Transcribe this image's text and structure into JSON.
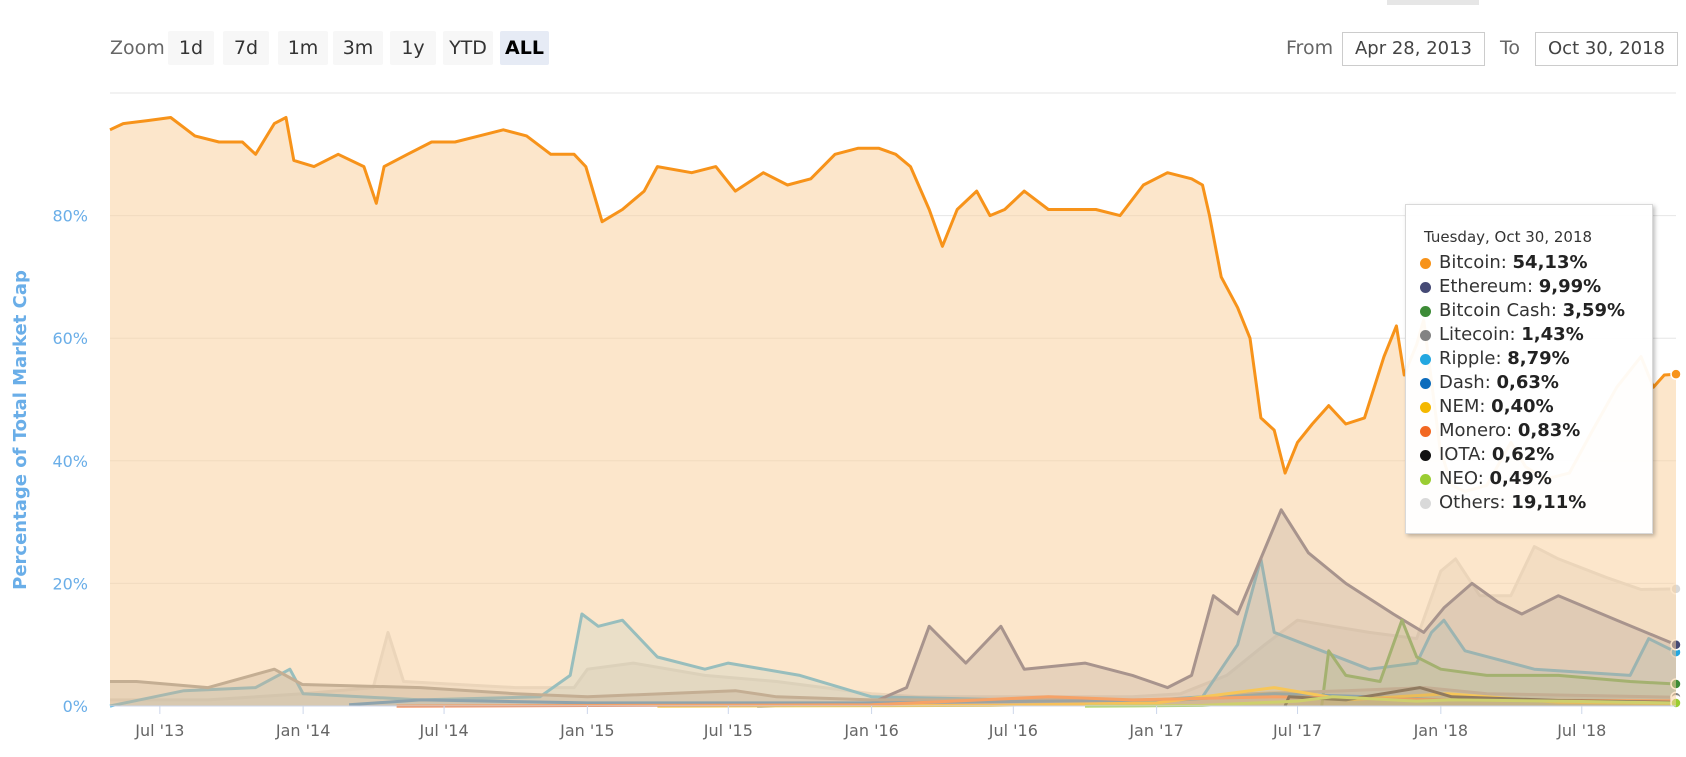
{
  "toolbar": {
    "zoom_label": "Zoom",
    "zoom_buttons": [
      "1d",
      "7d",
      "1m",
      "3m",
      "1y",
      "YTD",
      "ALL"
    ],
    "active_zoom": "ALL",
    "from_label": "From",
    "from_value": "Apr 28, 2013",
    "to_label": "To",
    "to_value": "Oct 30, 2018"
  },
  "tooltip": {
    "date": "Tuesday, Oct 30, 2018",
    "rows": [
      {
        "name": "Bitcoin",
        "value": "54,13%",
        "color": "#f7931a"
      },
      {
        "name": "Ethereum",
        "value": "9,99%",
        "color": "#454a75"
      },
      {
        "name": "Bitcoin Cash",
        "value": "3,59%",
        "color": "#3d8b37"
      },
      {
        "name": "Litecoin",
        "value": "1,43%",
        "color": "#838383"
      },
      {
        "name": "Ripple",
        "value": "8,79%",
        "color": "#23a7e0"
      },
      {
        "name": "Dash",
        "value": "0,63%",
        "color": "#0d6cbc"
      },
      {
        "name": "NEM",
        "value": "0,40%",
        "color": "#f4b800"
      },
      {
        "name": "Monero",
        "value": "0,83%",
        "color": "#f26822"
      },
      {
        "name": "IOTA",
        "value": "0,62%",
        "color": "#111111"
      },
      {
        "name": "NEO",
        "value": "0,49%",
        "color": "#9acd32"
      },
      {
        "name": "Others",
        "value": "19,11%",
        "color": "#d9d9d9"
      }
    ]
  },
  "chart_data": {
    "type": "area",
    "ylabel": "Percentage of Total Market Cap",
    "ylim": [
      0,
      100
    ],
    "xlim": [
      "2013-04-28",
      "2018-10-30"
    ],
    "y_ticks": [
      0,
      20,
      40,
      60,
      80
    ],
    "y_tick_labels": [
      "0%",
      "20%",
      "40%",
      "60%",
      "80%"
    ],
    "x_tick_labels": [
      "Jul '13",
      "Jan '14",
      "Jul '14",
      "Jan '15",
      "Jul '15",
      "Jan '16",
      "Jul '16",
      "Jan '17",
      "Jul '17",
      "Jan '18",
      "Jul '18"
    ],
    "x_tick_dates": [
      "2013-07-01",
      "2014-01-01",
      "2014-07-01",
      "2015-01-01",
      "2015-07-01",
      "2016-01-01",
      "2016-07-01",
      "2017-01-01",
      "2017-07-01",
      "2018-01-01",
      "2018-07-01"
    ],
    "grid": true,
    "series": [
      {
        "name": "Others",
        "color": "#d9d9d9",
        "fill": "rgba(200,200,200,0.35)",
        "points": [
          [
            "2013-04-28",
            1
          ],
          [
            "2013-09-01",
            1
          ],
          [
            "2014-01-01",
            2
          ],
          [
            "2014-04-01",
            3
          ],
          [
            "2014-04-20",
            12
          ],
          [
            "2014-05-10",
            4
          ],
          [
            "2014-10-01",
            3
          ],
          [
            "2014-12-15",
            3
          ],
          [
            "2015-01-01",
            6
          ],
          [
            "2015-03-01",
            7
          ],
          [
            "2015-06-01",
            5
          ],
          [
            "2015-09-01",
            4
          ],
          [
            "2016-01-01",
            2
          ],
          [
            "2016-03-01",
            1.5
          ],
          [
            "2016-07-01",
            1.5
          ],
          [
            "2016-12-01",
            1.5
          ],
          [
            "2017-02-01",
            2
          ],
          [
            "2017-04-01",
            5
          ],
          [
            "2017-05-20",
            10
          ],
          [
            "2017-07-01",
            14
          ],
          [
            "2017-08-15",
            13
          ],
          [
            "2017-10-01",
            12
          ],
          [
            "2017-12-01",
            11
          ],
          [
            "2018-01-01",
            22
          ],
          [
            "2018-01-20",
            24
          ],
          [
            "2018-02-20",
            18
          ],
          [
            "2018-04-01",
            18
          ],
          [
            "2018-05-01",
            26
          ],
          [
            "2018-06-01",
            24
          ],
          [
            "2018-08-01",
            21
          ],
          [
            "2018-09-15",
            19
          ],
          [
            "2018-10-30",
            19.11
          ]
        ]
      },
      {
        "name": "Ripple",
        "color": "#23a7e0",
        "fill": "rgba(35,167,224,0.18)",
        "points": [
          [
            "2013-04-28",
            0
          ],
          [
            "2013-08-01",
            2.5
          ],
          [
            "2013-11-01",
            3
          ],
          [
            "2013-12-15",
            6
          ],
          [
            "2014-01-01",
            2
          ],
          [
            "2014-06-01",
            1
          ],
          [
            "2014-11-01",
            1.5
          ],
          [
            "2014-12-10",
            5
          ],
          [
            "2014-12-25",
            15
          ],
          [
            "2015-01-15",
            13
          ],
          [
            "2015-02-15",
            14
          ],
          [
            "2015-04-01",
            8
          ],
          [
            "2015-06-01",
            6
          ],
          [
            "2015-07-01",
            7
          ],
          [
            "2015-10-01",
            5
          ],
          [
            "2016-01-01",
            1.5
          ],
          [
            "2016-07-01",
            1
          ],
          [
            "2017-01-01",
            1
          ],
          [
            "2017-03-01",
            1.5
          ],
          [
            "2017-04-15",
            10
          ],
          [
            "2017-05-15",
            24
          ],
          [
            "2017-06-01",
            12
          ],
          [
            "2017-08-01",
            9
          ],
          [
            "2017-10-01",
            6
          ],
          [
            "2017-12-01",
            7
          ],
          [
            "2017-12-20",
            12
          ],
          [
            "2018-01-05",
            14
          ],
          [
            "2018-02-01",
            9
          ],
          [
            "2018-05-01",
            6
          ],
          [
            "2018-09-01",
            5
          ],
          [
            "2018-09-25",
            11
          ],
          [
            "2018-10-30",
            8.79
          ]
        ]
      },
      {
        "name": "Ethereum",
        "color": "#454a75",
        "fill": "rgba(69,74,117,0.25)",
        "points": [
          [
            "2015-08-07",
            0
          ],
          [
            "2016-01-01",
            0.5
          ],
          [
            "2016-02-15",
            3
          ],
          [
            "2016-03-15",
            13
          ],
          [
            "2016-05-01",
            7
          ],
          [
            "2016-06-15",
            13
          ],
          [
            "2016-07-15",
            6
          ],
          [
            "2016-10-01",
            7
          ],
          [
            "2016-12-01",
            5
          ],
          [
            "2017-01-15",
            3
          ],
          [
            "2017-02-15",
            5
          ],
          [
            "2017-03-15",
            18
          ],
          [
            "2017-04-15",
            15
          ],
          [
            "2017-06-10",
            32
          ],
          [
            "2017-07-15",
            25
          ],
          [
            "2017-09-01",
            20
          ],
          [
            "2017-11-01",
            15
          ],
          [
            "2017-12-10",
            12
          ],
          [
            "2018-01-05",
            16
          ],
          [
            "2018-02-10",
            20
          ],
          [
            "2018-03-15",
            17
          ],
          [
            "2018-04-15",
            15
          ],
          [
            "2018-06-01",
            18
          ],
          [
            "2018-08-15",
            14
          ],
          [
            "2018-10-30",
            9.99
          ]
        ]
      },
      {
        "name": "Bitcoin Cash",
        "color": "#3d8b37",
        "fill": "rgba(61,139,55,0.18)",
        "points": [
          [
            "2017-08-01",
            0
          ],
          [
            "2017-08-10",
            9
          ],
          [
            "2017-09-01",
            5
          ],
          [
            "2017-10-15",
            4
          ],
          [
            "2017-11-12",
            14
          ],
          [
            "2017-12-01",
            8
          ],
          [
            "2018-01-01",
            6
          ],
          [
            "2018-03-01",
            5
          ],
          [
            "2018-06-01",
            5
          ],
          [
            "2018-09-01",
            4
          ],
          [
            "2018-10-30",
            3.59
          ]
        ]
      },
      {
        "name": "Litecoin",
        "color": "#838383",
        "fill": "rgba(131,131,131,0.35)",
        "points": [
          [
            "2013-04-28",
            4
          ],
          [
            "2013-06-01",
            4
          ],
          [
            "2013-09-01",
            3
          ],
          [
            "2013-11-25",
            6
          ],
          [
            "2013-12-31",
            3.5
          ],
          [
            "2014-06-01",
            3
          ],
          [
            "2014-10-01",
            2
          ],
          [
            "2015-01-01",
            1.5
          ],
          [
            "2015-07-10",
            2.5
          ],
          [
            "2015-09-01",
            1.5
          ],
          [
            "2016-01-01",
            1
          ],
          [
            "2016-07-01",
            1
          ],
          [
            "2017-01-01",
            0.8
          ],
          [
            "2017-05-01",
            2
          ],
          [
            "2017-09-01",
            2.5
          ],
          [
            "2017-12-12",
            3
          ],
          [
            "2018-03-01",
            2
          ],
          [
            "2018-10-30",
            1.43
          ]
        ]
      },
      {
        "name": "Dash",
        "color": "#0d6cbc",
        "fill": "rgba(13,108,188,0.15)",
        "points": [
          [
            "2014-03-01",
            0.2
          ],
          [
            "2014-06-01",
            1
          ],
          [
            "2015-01-01",
            0.5
          ],
          [
            "2016-01-01",
            0.5
          ],
          [
            "2017-02-01",
            1
          ],
          [
            "2017-06-01",
            2
          ],
          [
            "2017-10-01",
            1.5
          ],
          [
            "2018-01-01",
            1
          ],
          [
            "2018-10-30",
            0.63
          ]
        ]
      },
      {
        "name": "NEM",
        "color": "#f4b800",
        "fill": "rgba(244,184,0,0.15)",
        "points": [
          [
            "2015-04-01",
            0
          ],
          [
            "2016-06-01",
            0.1
          ],
          [
            "2017-01-01",
            0.5
          ],
          [
            "2017-06-01",
            3
          ],
          [
            "2017-09-01",
            1
          ],
          [
            "2018-01-10",
            2
          ],
          [
            "2018-06-01",
            0.6
          ],
          [
            "2018-10-30",
            0.4
          ]
        ]
      },
      {
        "name": "Monero",
        "color": "#f26822",
        "fill": "rgba(242,104,34,0.15)",
        "points": [
          [
            "2014-05-01",
            0
          ],
          [
            "2016-01-01",
            0.2
          ],
          [
            "2016-08-15",
            1.5
          ],
          [
            "2016-12-01",
            1
          ],
          [
            "2017-06-01",
            1.5
          ],
          [
            "2018-01-01",
            1
          ],
          [
            "2018-10-30",
            0.83
          ]
        ]
      },
      {
        "name": "IOTA",
        "color": "#111111",
        "fill": "rgba(17,17,17,0.12)",
        "points": [
          [
            "2017-06-15",
            0
          ],
          [
            "2017-06-20",
            1.5
          ],
          [
            "2017-09-01",
            1
          ],
          [
            "2017-12-05",
            3
          ],
          [
            "2018-01-15",
            1.5
          ],
          [
            "2018-06-01",
            0.9
          ],
          [
            "2018-10-30",
            0.62
          ]
        ]
      },
      {
        "name": "NEO",
        "color": "#9acd32",
        "fill": "rgba(154,205,50,0.15)",
        "points": [
          [
            "2016-10-01",
            0
          ],
          [
            "2017-03-01",
            0.1
          ],
          [
            "2017-07-01",
            0.8
          ],
          [
            "2017-08-15",
            1.5
          ],
          [
            "2017-12-01",
            0.8
          ],
          [
            "2018-01-15",
            1
          ],
          [
            "2018-06-01",
            0.8
          ],
          [
            "2018-10-30",
            0.49
          ]
        ]
      },
      {
        "name": "Bitcoin",
        "color": "#f7931a",
        "fill": "rgba(250,210,160,0.55)",
        "points": [
          [
            "2013-04-28",
            94
          ],
          [
            "2013-05-15",
            95
          ],
          [
            "2013-06-15",
            95.5
          ],
          [
            "2013-07-15",
            96
          ],
          [
            "2013-08-15",
            93
          ],
          [
            "2013-09-15",
            92
          ],
          [
            "2013-10-15",
            92
          ],
          [
            "2013-11-01",
            90
          ],
          [
            "2013-11-25",
            95
          ],
          [
            "2013-12-10",
            96
          ],
          [
            "2013-12-20",
            89
          ],
          [
            "2014-01-15",
            88
          ],
          [
            "2014-02-15",
            90
          ],
          [
            "2014-03-20",
            88
          ],
          [
            "2014-04-05",
            82
          ],
          [
            "2014-04-15",
            88
          ],
          [
            "2014-05-15",
            90
          ],
          [
            "2014-06-15",
            92
          ],
          [
            "2014-07-15",
            92
          ],
          [
            "2014-08-15",
            93
          ],
          [
            "2014-09-15",
            94
          ],
          [
            "2014-10-15",
            93
          ],
          [
            "2014-11-15",
            90
          ],
          [
            "2014-12-15",
            90
          ],
          [
            "2014-12-30",
            88
          ],
          [
            "2015-01-20",
            79
          ],
          [
            "2015-02-15",
            81
          ],
          [
            "2015-03-15",
            84
          ],
          [
            "2015-04-01",
            88
          ],
          [
            "2015-05-15",
            87
          ],
          [
            "2015-06-15",
            88
          ],
          [
            "2015-07-10",
            84
          ],
          [
            "2015-08-15",
            87
          ],
          [
            "2015-09-15",
            85
          ],
          [
            "2015-10-15",
            86
          ],
          [
            "2015-11-15",
            90
          ],
          [
            "2015-12-15",
            91
          ],
          [
            "2016-01-10",
            91
          ],
          [
            "2016-02-01",
            90
          ],
          [
            "2016-02-20",
            88
          ],
          [
            "2016-03-15",
            81
          ],
          [
            "2016-04-01",
            75
          ],
          [
            "2016-04-20",
            81
          ],
          [
            "2016-05-15",
            84
          ],
          [
            "2016-06-01",
            80
          ],
          [
            "2016-06-20",
            81
          ],
          [
            "2016-07-15",
            84
          ],
          [
            "2016-08-15",
            81
          ],
          [
            "2016-09-15",
            81
          ],
          [
            "2016-10-15",
            81
          ],
          [
            "2016-11-15",
            80
          ],
          [
            "2016-12-15",
            85
          ],
          [
            "2017-01-15",
            87
          ],
          [
            "2017-02-15",
            86
          ],
          [
            "2017-03-01",
            85
          ],
          [
            "2017-03-10",
            80
          ],
          [
            "2017-03-25",
            70
          ],
          [
            "2017-04-15",
            65
          ],
          [
            "2017-05-01",
            60
          ],
          [
            "2017-05-15",
            47
          ],
          [
            "2017-06-01",
            45
          ],
          [
            "2017-06-15",
            38
          ],
          [
            "2017-07-01",
            43
          ],
          [
            "2017-07-20",
            46
          ],
          [
            "2017-08-10",
            49
          ],
          [
            "2017-09-01",
            46
          ],
          [
            "2017-09-25",
            47
          ],
          [
            "2017-10-20",
            57
          ],
          [
            "2017-11-05",
            62
          ],
          [
            "2017-11-15",
            54
          ],
          [
            "2017-12-01",
            59
          ],
          [
            "2017-12-10",
            63
          ],
          [
            "2017-12-31",
            42
          ],
          [
            "2018-01-15",
            36
          ],
          [
            "2018-02-01",
            35
          ],
          [
            "2018-03-01",
            36
          ],
          [
            "2018-04-01",
            43
          ],
          [
            "2018-04-20",
            39
          ],
          [
            "2018-05-15",
            37
          ],
          [
            "2018-06-15",
            38
          ],
          [
            "2018-07-15",
            45
          ],
          [
            "2018-08-15",
            52
          ],
          [
            "2018-09-15",
            57
          ],
          [
            "2018-10-01",
            52
          ],
          [
            "2018-10-15",
            54
          ],
          [
            "2018-10-30",
            54.13
          ]
        ]
      }
    ]
  }
}
